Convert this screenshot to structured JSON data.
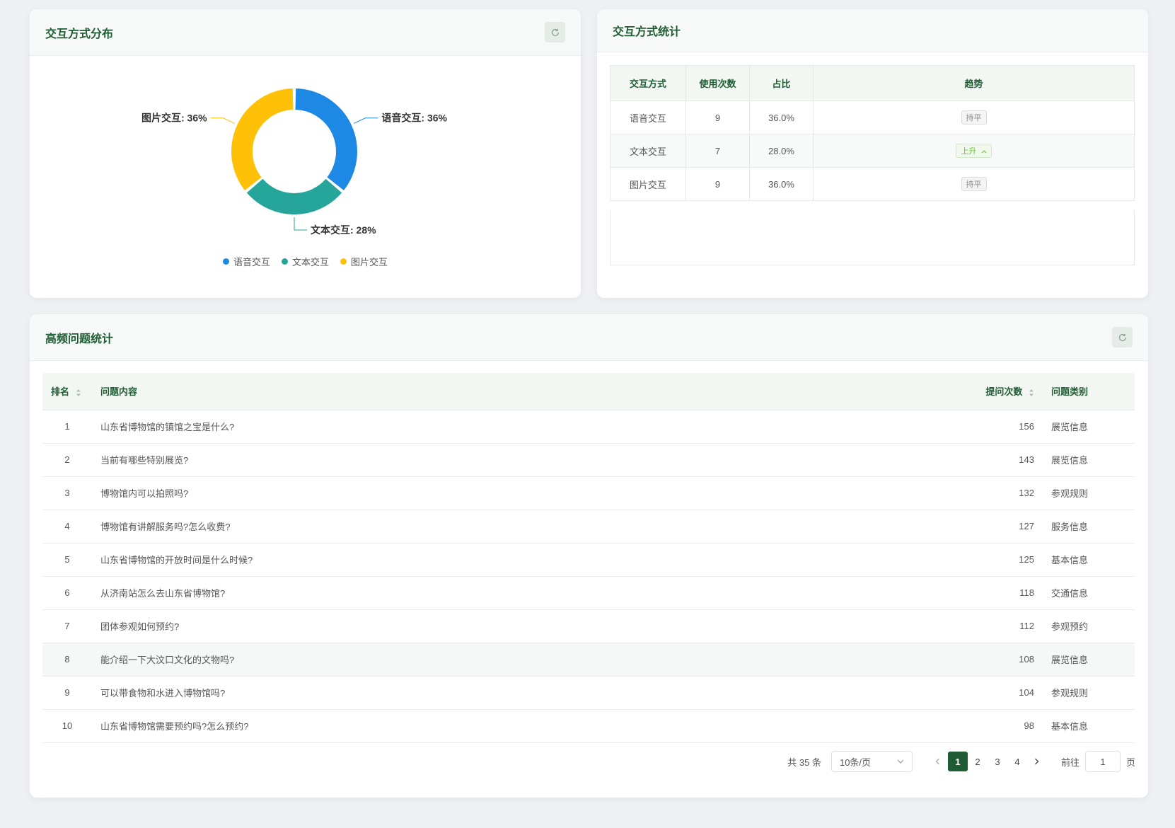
{
  "dist_card": {
    "title": "交互方式分布",
    "refresh_icon": "refresh-icon"
  },
  "chart_data": {
    "type": "pie",
    "title": "",
    "labels": [
      "语音交互",
      "文本交互",
      "图片交互"
    ],
    "values": [
      36,
      28,
      36
    ],
    "slice_labels": [
      "语音交互: 36%",
      "文本交互: 28%",
      "图片交互: 36%"
    ],
    "colors": [
      "#1e88e5",
      "#26a69a",
      "#ffc107"
    ],
    "legend": "bottom",
    "donut": true
  },
  "stats_card": {
    "title": "交互方式统计",
    "columns": [
      "交互方式",
      "使用次数",
      "占比",
      "趋势"
    ],
    "rows": [
      {
        "mode": "语音交互",
        "count": "9",
        "ratio": "36.0%",
        "trend": "持平",
        "trend_type": "flat"
      },
      {
        "mode": "文本交互",
        "count": "7",
        "ratio": "28.0%",
        "trend": "上升",
        "trend_type": "up"
      },
      {
        "mode": "图片交互",
        "count": "9",
        "ratio": "36.0%",
        "trend": "持平",
        "trend_type": "flat"
      }
    ]
  },
  "faq_card": {
    "title": "高频问题统计",
    "columns": {
      "rank": "排名",
      "content": "问题内容",
      "count": "提问次数",
      "category": "问题类别"
    },
    "rows": [
      {
        "rank": "1",
        "content": "山东省博物馆的镇馆之宝是什么?",
        "count": "156",
        "category": "展览信息"
      },
      {
        "rank": "2",
        "content": "当前有哪些特别展览?",
        "count": "143",
        "category": "展览信息"
      },
      {
        "rank": "3",
        "content": "博物馆内可以拍照吗?",
        "count": "132",
        "category": "参观规则"
      },
      {
        "rank": "4",
        "content": "博物馆有讲解服务吗?怎么收费?",
        "count": "127",
        "category": "服务信息"
      },
      {
        "rank": "5",
        "content": "山东省博物馆的开放时间是什么时候?",
        "count": "125",
        "category": "基本信息"
      },
      {
        "rank": "6",
        "content": "从济南站怎么去山东省博物馆?",
        "count": "118",
        "category": "交通信息"
      },
      {
        "rank": "7",
        "content": "团体参观如何预约?",
        "count": "112",
        "category": "参观预约"
      },
      {
        "rank": "8",
        "content": "能介绍一下大汶口文化的文物吗?",
        "count": "108",
        "category": "展览信息"
      },
      {
        "rank": "9",
        "content": "可以带食物和水进入博物馆吗?",
        "count": "104",
        "category": "参观规则"
      },
      {
        "rank": "10",
        "content": "山东省博物馆需要预约吗?怎么预约?",
        "count": "98",
        "category": "基本信息"
      }
    ],
    "highlight_row": 8,
    "pagination": {
      "total": "共 35 条",
      "page_size": "10条/页",
      "pages": [
        "1",
        "2",
        "3",
        "4"
      ],
      "current": "1",
      "goto_label": "前往",
      "goto_value": "1",
      "page_suffix": "页"
    }
  },
  "colors": {
    "title_green": "#1f5c33",
    "header_bg": "#f2f7f3"
  }
}
